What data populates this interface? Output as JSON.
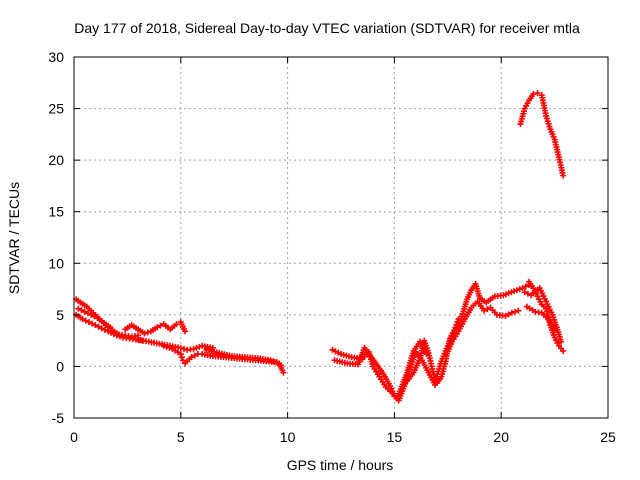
{
  "chart_data": {
    "type": "scatter",
    "title": "Day 177 of 2018, Sidereal Day-to-day VTEC variation (SDTVAR) for receiver mtla",
    "xlabel": "GPS time / hours",
    "ylabel": "SDTVAR / TECUs",
    "xlim": [
      0,
      25
    ],
    "ylim": [
      -5,
      30
    ],
    "xticks": [
      "0",
      "5",
      "10",
      "15",
      "20",
      "25"
    ],
    "yticks": [
      "-5",
      "0",
      "5",
      "10",
      "15",
      "20",
      "25",
      "30"
    ],
    "grid": true,
    "marker": "+",
    "color": "#ff0000",
    "series": [
      {
        "name": "early-upper",
        "x": [
          0.1,
          0.3,
          0.6,
          0.9,
          1.2,
          1.5,
          1.8,
          2.1,
          2.4,
          2.7,
          3.0
        ],
        "y": [
          6.5,
          6.2,
          5.8,
          5.2,
          4.6,
          4.0,
          3.5,
          3.1,
          3.0,
          2.9,
          3.0
        ]
      },
      {
        "name": "early-lower",
        "x": [
          0.1,
          0.4,
          0.7,
          1.0,
          1.3,
          1.6,
          2.0,
          2.3,
          2.6,
          2.9,
          3.2
        ],
        "y": [
          5.0,
          4.6,
          4.3,
          4.0,
          3.7,
          3.4,
          3.0,
          2.8,
          2.7,
          2.6,
          2.5
        ]
      },
      {
        "name": "early-mid",
        "x": [
          0.2,
          0.5,
          0.8,
          1.1,
          1.4,
          1.7
        ],
        "y": [
          5.6,
          5.3,
          5.0,
          4.7,
          4.2,
          3.8
        ]
      },
      {
        "name": "morning-hump",
        "x": [
          2.4,
          2.7,
          3.0,
          3.3,
          3.6,
          3.9,
          4.2,
          4.5,
          4.8,
          5.0,
          5.2
        ],
        "y": [
          3.6,
          4.0,
          3.6,
          3.2,
          3.4,
          3.8,
          4.1,
          3.6,
          4.1,
          4.3,
          3.4
        ]
      },
      {
        "name": "morning-flat",
        "x": [
          3.0,
          3.5,
          4.0,
          4.5,
          5.0,
          5.3,
          5.6,
          6.0,
          6.5
        ],
        "y": [
          2.6,
          2.4,
          2.2,
          2.0,
          1.8,
          1.6,
          1.7,
          2.0,
          1.8
        ]
      },
      {
        "name": "morning-dip",
        "x": [
          4.2,
          4.6,
          5.0,
          5.1,
          5.2,
          5.5,
          5.8
        ],
        "y": [
          2.0,
          1.7,
          1.2,
          0.6,
          0.3,
          0.9,
          1.2
        ]
      },
      {
        "name": "mid-trail-a",
        "x": [
          6.0,
          6.5,
          7.0,
          7.5,
          8.0,
          8.5,
          9.0,
          9.5,
          9.7
        ],
        "y": [
          1.2,
          1.0,
          0.9,
          0.8,
          0.7,
          0.6,
          0.5,
          0.4,
          0.1
        ]
      },
      {
        "name": "mid-trail-b",
        "x": [
          6.2,
          6.8,
          7.4,
          8.0,
          8.6,
          9.2,
          9.6,
          9.8
        ],
        "y": [
          1.6,
          1.3,
          1.0,
          0.9,
          0.8,
          0.6,
          0.3,
          -0.6
        ]
      },
      {
        "name": "afternoon-a",
        "x": [
          12.1,
          12.5,
          13.0,
          13.5,
          13.8,
          14.0,
          14.3,
          14.6,
          14.9,
          15.1,
          15.3,
          15.6,
          15.9,
          16.2,
          16.5
        ],
        "y": [
          1.6,
          1.2,
          0.9,
          0.7,
          1.4,
          0.0,
          -1.0,
          -2.0,
          -2.6,
          -3.1,
          -2.2,
          -0.6,
          1.5,
          2.4,
          1.2
        ]
      },
      {
        "name": "afternoon-b",
        "x": [
          12.2,
          12.8,
          13.3,
          13.6,
          14.1,
          14.5,
          14.8,
          15.0,
          15.2,
          15.5,
          15.8,
          16.0,
          16.3,
          16.6,
          16.9
        ],
        "y": [
          0.6,
          0.3,
          0.2,
          1.8,
          0.4,
          -0.8,
          -1.9,
          -2.9,
          -3.3,
          -1.7,
          0.2,
          1.4,
          0.6,
          -0.6,
          -1.8
        ]
      },
      {
        "name": "afternoon-c",
        "x": [
          15.6,
          15.9,
          16.2,
          16.4,
          16.6,
          16.8,
          17.0,
          17.2,
          17.4,
          17.6,
          17.8,
          18.0
        ],
        "y": [
          -1.4,
          -0.6,
          0.8,
          2.5,
          1.3,
          -0.5,
          -1.6,
          -1.0,
          0.5,
          2.7,
          3.5,
          4.6
        ]
      },
      {
        "name": "rise-a",
        "x": [
          16.9,
          17.2,
          17.5,
          17.8,
          18.1,
          18.4,
          18.6,
          18.8,
          19.0,
          19.3,
          19.7,
          20.1,
          20.6,
          21.0,
          21.3
        ],
        "y": [
          -1.5,
          0.5,
          2.0,
          3.5,
          4.4,
          6.5,
          7.4,
          8.0,
          6.6,
          6.2,
          6.8,
          6.9,
          7.3,
          7.6,
          7.9
        ]
      },
      {
        "name": "rise-b",
        "x": [
          17.4,
          17.7,
          18.0,
          18.3,
          18.6,
          18.9,
          19.2,
          19.5,
          19.8,
          20.2,
          20.5,
          20.8
        ],
        "y": [
          1.0,
          2.4,
          3.4,
          4.6,
          5.7,
          6.3,
          5.4,
          5.7,
          5.0,
          4.9,
          5.2,
          5.4
        ]
      },
      {
        "name": "late-a",
        "x": [
          21.3,
          21.5,
          21.7,
          21.9,
          22.1,
          22.3,
          22.5,
          22.7,
          22.9
        ],
        "y": [
          8.2,
          7.6,
          6.8,
          6.0,
          5.6,
          4.0,
          2.8,
          2.0,
          1.5
        ]
      },
      {
        "name": "late-b",
        "x": [
          21.1,
          21.4,
          21.8,
          22.1,
          22.4,
          22.6,
          22.8
        ],
        "y": [
          7.2,
          6.9,
          7.6,
          6.3,
          5.0,
          3.8,
          2.4
        ]
      },
      {
        "name": "late-c",
        "x": [
          21.2,
          21.6,
          21.9,
          22.2,
          22.5
        ],
        "y": [
          5.8,
          5.3,
          5.2,
          4.6,
          3.5
        ]
      },
      {
        "name": "late-high",
        "x": [
          20.9,
          21.1,
          21.3,
          21.5,
          21.7,
          21.9,
          22.1,
          22.3,
          22.5,
          22.7,
          22.9
        ],
        "y": [
          23.5,
          25.0,
          25.8,
          26.4,
          26.5,
          26.3,
          24.3,
          23.0,
          22.0,
          20.3,
          18.5
        ]
      }
    ]
  }
}
